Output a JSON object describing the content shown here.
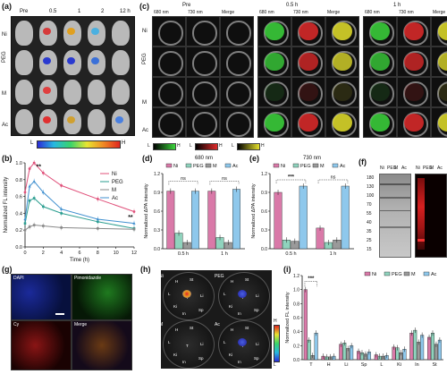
{
  "panel_labels": [
    "(a)",
    "(b)",
    "(c)",
    "(d)",
    "(e)",
    "(f)",
    "(g)",
    "(h)",
    "(i)"
  ],
  "a": {
    "time_headers": [
      "Pre",
      "0.5",
      "1",
      "2",
      "12 h"
    ],
    "row_labels": [
      "Ni",
      "PEG",
      "M",
      "Ac"
    ],
    "scale_low": "L",
    "scale_high": "H"
  },
  "c": {
    "group_headers": [
      "Pre",
      "0.5 h",
      "1 h"
    ],
    "sub_headers": [
      "680 nm",
      "730 nm",
      "Merge"
    ],
    "row_labels": [
      "Ni",
      "PEG",
      "M",
      "Ac"
    ],
    "scale_labels": [
      "L",
      "H",
      "L",
      "H",
      "L",
      "H"
    ]
  },
  "g": {
    "labels": [
      "DAPI",
      "Pimonidazole",
      "Cy",
      "Merge"
    ]
  },
  "h": {
    "group_labels": [
      "Ni",
      "PEG",
      "M",
      "Ac"
    ],
    "organ_labels": [
      "H",
      "St",
      "Li",
      "T",
      "Ki",
      "Sp",
      "In",
      "L"
    ],
    "scale_high": "H",
    "scale_low": "L"
  },
  "f": {
    "col_labels": [
      "Ni",
      "PEG",
      "M",
      "Ac",
      "Ni",
      "PEG",
      "M",
      "Ac"
    ],
    "ladder": [
      "180",
      "130",
      "100",
      "70",
      "55",
      "40",
      "35",
      "25",
      "15"
    ]
  },
  "colors": {
    "Ni": "#d979a8",
    "PEG": "#8fd3bd",
    "M": "#9a9a9a",
    "Ac": "#8ec8ec",
    "line_Ni": "#e0507a",
    "line_PEG": "#2a9d8f",
    "line_M": "#888888",
    "line_Ac": "#3f8fcf"
  },
  "chart_data": [
    {
      "id": "b",
      "type": "line",
      "xlabel": "Time (h)",
      "ylabel": "Normalized FL intensity",
      "xlim": [
        0,
        12
      ],
      "ylim": [
        0.0,
        1.0
      ],
      "xticks": [
        "0",
        "2",
        "4",
        "6",
        "8",
        "10",
        "12"
      ],
      "yticks": [
        "0.0",
        "0.2",
        "0.4",
        "0.6",
        "0.8",
        "1.0"
      ],
      "x": [
        0,
        0.5,
        1,
        2,
        4,
        8,
        12
      ],
      "series": [
        {
          "name": "Ni",
          "values": [
            0.65,
            0.93,
            1.0,
            0.88,
            0.73,
            0.57,
            0.42
          ]
        },
        {
          "name": "PEG",
          "values": [
            0.28,
            0.55,
            0.58,
            0.48,
            0.4,
            0.3,
            0.22
          ]
        },
        {
          "name": "M",
          "values": [
            0.2,
            0.24,
            0.26,
            0.25,
            0.23,
            0.22,
            0.21
          ]
        },
        {
          "name": "Ac",
          "values": [
            0.33,
            0.72,
            0.78,
            0.65,
            0.45,
            0.33,
            0.28
          ]
        }
      ],
      "annotations": [
        "**",
        "**"
      ],
      "legend": "right"
    },
    {
      "id": "d",
      "type": "bar",
      "title": "680 nm",
      "ylabel": "Normalized ΔPA intensity",
      "categories": [
        "0.5 h",
        "1 h"
      ],
      "ylim": [
        0.0,
        1.2
      ],
      "yticks": [
        "0.0",
        "0.3",
        "0.6",
        "0.9",
        "1.2"
      ],
      "series": [
        {
          "name": "Ni",
          "values": [
            0.92,
            0.92
          ]
        },
        {
          "name": "PEG",
          "values": [
            0.25,
            0.18
          ]
        },
        {
          "name": "M",
          "values": [
            0.1,
            0.1
          ]
        },
        {
          "name": "Ac",
          "values": [
            0.92,
            0.95
          ]
        }
      ],
      "annotations": [
        "ns",
        "ns"
      ]
    },
    {
      "id": "e",
      "type": "bar",
      "title": "730 nm",
      "ylabel": "Normalized ΔPA intensity",
      "categories": [
        "0.5 h",
        "1 h"
      ],
      "ylim": [
        0.0,
        1.2
      ],
      "yticks": [
        "0.0",
        "0.3",
        "0.6",
        "0.9",
        "1.2"
      ],
      "series": [
        {
          "name": "Ni",
          "values": [
            0.9,
            0.33
          ]
        },
        {
          "name": "PEG",
          "values": [
            0.14,
            0.1
          ]
        },
        {
          "name": "M",
          "values": [
            0.12,
            0.14
          ]
        },
        {
          "name": "Ac",
          "values": [
            1.0,
            1.0
          ]
        }
      ],
      "annotations": [
        "***",
        "ns"
      ]
    },
    {
      "id": "i",
      "type": "bar",
      "ylabel": "Normalized FL intensity",
      "categories": [
        "T",
        "H",
        "Li",
        "Sp",
        "L",
        "Ki",
        "In",
        "St"
      ],
      "ylim": [
        0.0,
        1.2
      ],
      "yticks": [
        "0.0",
        "0.2",
        "0.4",
        "0.6",
        "0.8",
        "1.0",
        "1.2"
      ],
      "series": [
        {
          "name": "Ni",
          "values": [
            1.0,
            0.05,
            0.22,
            0.12,
            0.07,
            0.18,
            0.38,
            0.32
          ]
        },
        {
          "name": "PEG",
          "values": [
            0.28,
            0.04,
            0.24,
            0.1,
            0.05,
            0.17,
            0.42,
            0.38
          ]
        },
        {
          "name": "M",
          "values": [
            0.06,
            0.04,
            0.16,
            0.08,
            0.05,
            0.1,
            0.25,
            0.22
          ]
        },
        {
          "name": "Ac",
          "values": [
            0.38,
            0.05,
            0.2,
            0.11,
            0.06,
            0.15,
            0.35,
            0.28
          ]
        }
      ],
      "annotations": [
        "***"
      ],
      "legend": "top-right"
    }
  ]
}
